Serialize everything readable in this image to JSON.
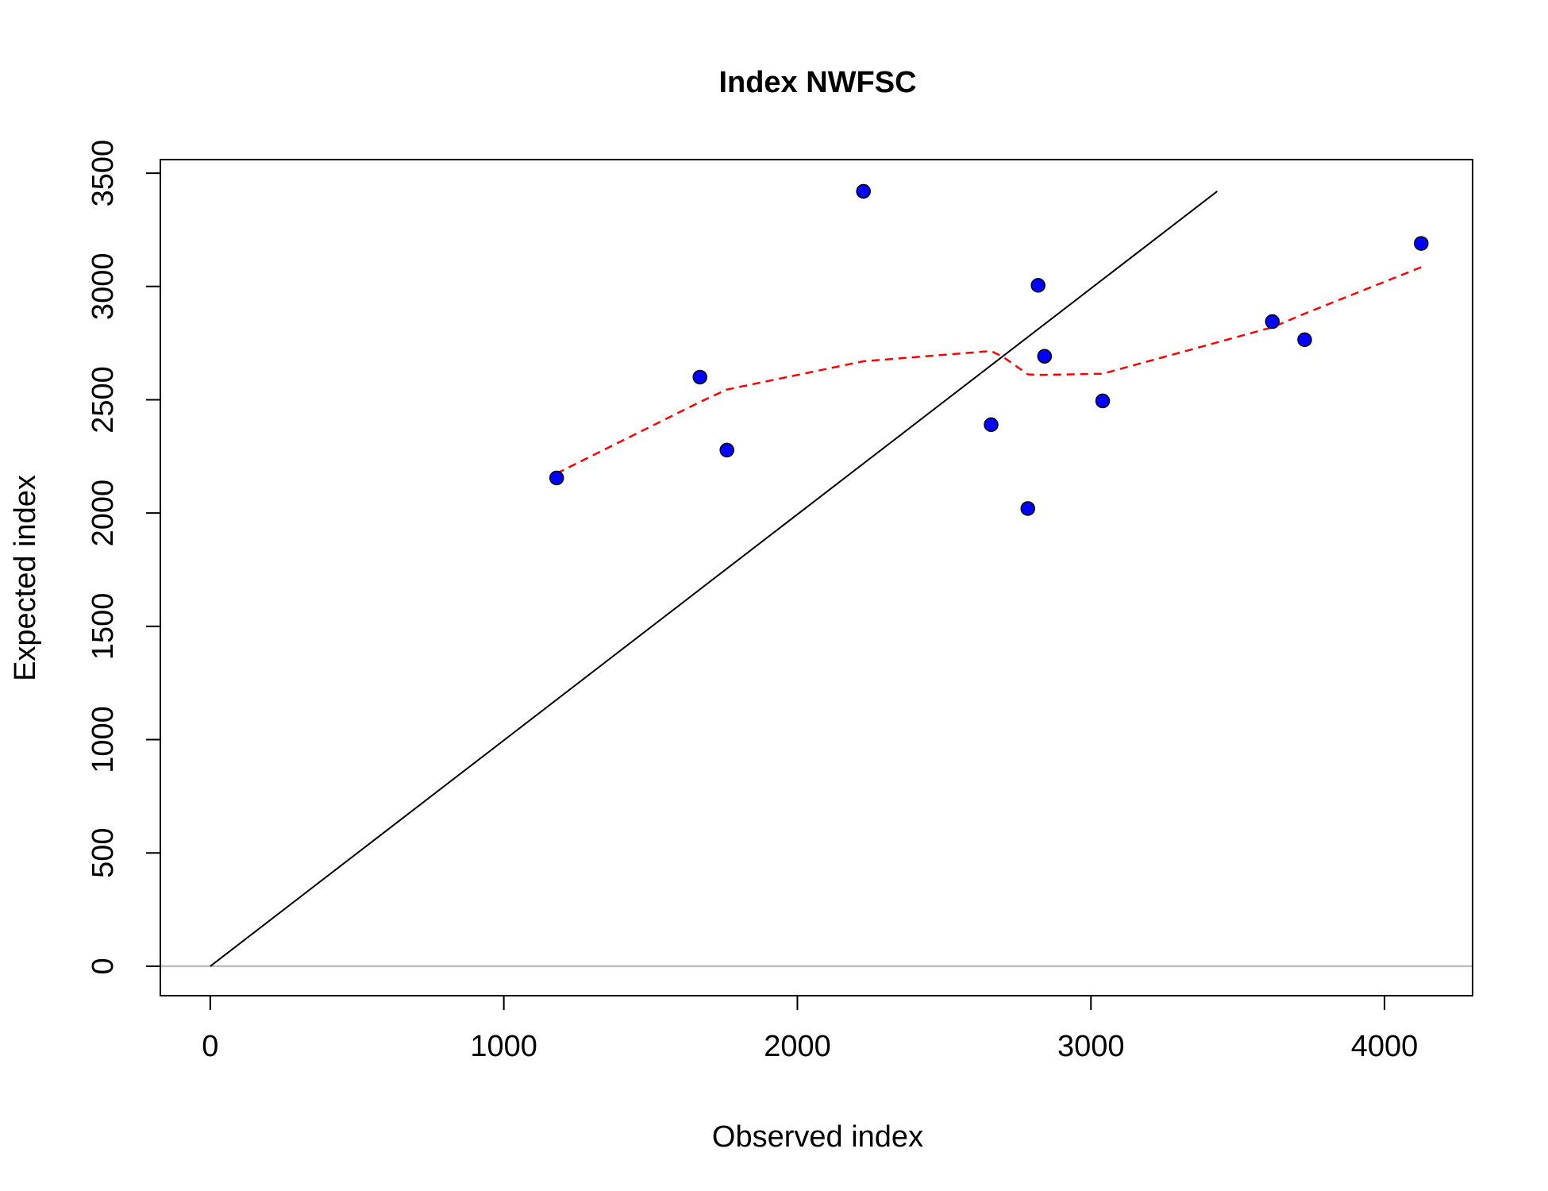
{
  "chart_data": {
    "type": "scatter",
    "title": "Index NWFSC",
    "xlabel": "Observed index",
    "ylabel": "Expected index",
    "xlim": [
      -170,
      4300
    ],
    "ylim": [
      -130,
      3560
    ],
    "xticks": [
      0,
      1000,
      2000,
      3000,
      4000
    ],
    "yticks": [
      0,
      500,
      1000,
      1500,
      2000,
      2500,
      3000,
      3500
    ],
    "grid": false,
    "points": [
      {
        "x": 1180,
        "y": 2155
      },
      {
        "x": 1668,
        "y": 2600
      },
      {
        "x": 1760,
        "y": 2278
      },
      {
        "x": 2225,
        "y": 3420
      },
      {
        "x": 2660,
        "y": 2390
      },
      {
        "x": 2785,
        "y": 2020
      },
      {
        "x": 2820,
        "y": 3005
      },
      {
        "x": 2842,
        "y": 2692
      },
      {
        "x": 3040,
        "y": 2495
      },
      {
        "x": 3618,
        "y": 2845
      },
      {
        "x": 3728,
        "y": 2765
      },
      {
        "x": 4125,
        "y": 3190
      }
    ],
    "reference_line": {
      "x": [
        0,
        3430
      ],
      "y": [
        0,
        3420
      ]
    },
    "zero_line_y": 0,
    "smoother": {
      "x": [
        1180,
        1668,
        1760,
        2225,
        2660,
        2700,
        2785,
        2820,
        2842,
        3040,
        3618,
        3728,
        4125
      ],
      "y": [
        2175,
        2490,
        2545,
        2670,
        2715,
        2690,
        2612,
        2610,
        2610,
        2615,
        2820,
        2880,
        3085
      ]
    },
    "colors": {
      "points": "#0000FF",
      "point_stroke": "#000000",
      "reference_line": "#000000",
      "zero_line": "#BEBEBE",
      "smoother": "#FF0000"
    }
  }
}
